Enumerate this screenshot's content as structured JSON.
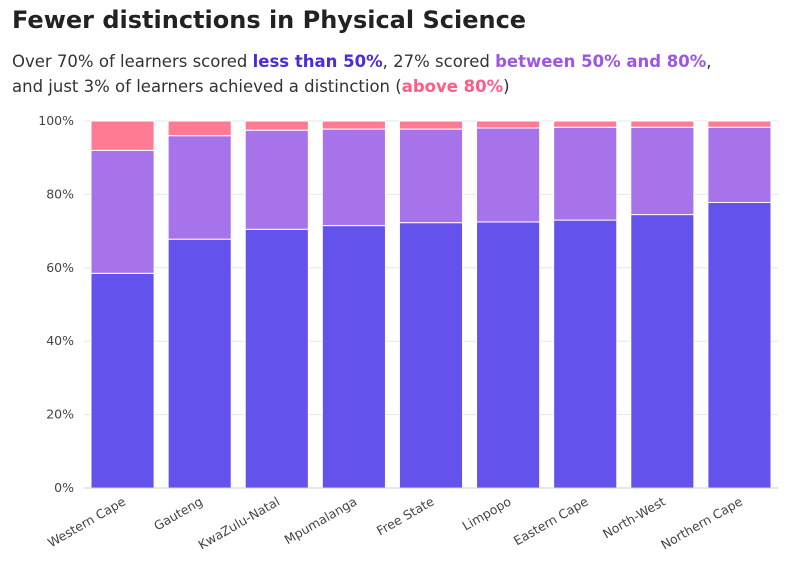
{
  "title": "Fewer distinctions in Physical Science",
  "subtitle": {
    "line1_a": "Over 70% of learners scored ",
    "line1_hl1": "less than 50%",
    "line1_b": ", 27% scored ",
    "line1_hl2": "between 50% and 80%",
    "line1_c": ",",
    "line2_a": "and just 3% of learners achieved a distinction (",
    "line2_hl3": "above 80%",
    "line2_b": ")"
  },
  "colors": {
    "less_than_50": "#6352EC",
    "between_50_80": "#A673EA",
    "above_80": "#FF7B93",
    "hl_less_than_50": "#4B2BE0",
    "hl_between": "#9D55E6",
    "hl_above": "#FF5C86",
    "grid": "#e6e6e6"
  },
  "chart_data": {
    "type": "bar",
    "stacked": true,
    "normalized": true,
    "categories": [
      "Western Cape",
      "Gauteng",
      "KwaZulu-Natal",
      "Mpumalanga",
      "Free State",
      "Limpopo",
      "Eastern Cape",
      "North-West",
      "Northern Cape"
    ],
    "series": [
      {
        "name": "less than 50%",
        "values": [
          58.5,
          67.8,
          70.5,
          71.5,
          72.3,
          72.5,
          73.0,
          74.5,
          77.8
        ]
      },
      {
        "name": "between 50% and 80%",
        "values": [
          33.5,
          28.2,
          27.0,
          26.3,
          25.5,
          25.6,
          25.3,
          23.8,
          20.5
        ]
      },
      {
        "name": "above 80%",
        "values": [
          8.0,
          4.0,
          2.5,
          2.2,
          2.2,
          1.9,
          1.7,
          1.7,
          1.7
        ]
      }
    ],
    "ylim": [
      0,
      100
    ],
    "yticks": [
      "0%",
      "20%",
      "40%",
      "60%",
      "80%",
      "100%"
    ],
    "grid": true,
    "xlabel": "",
    "ylabel": ""
  }
}
